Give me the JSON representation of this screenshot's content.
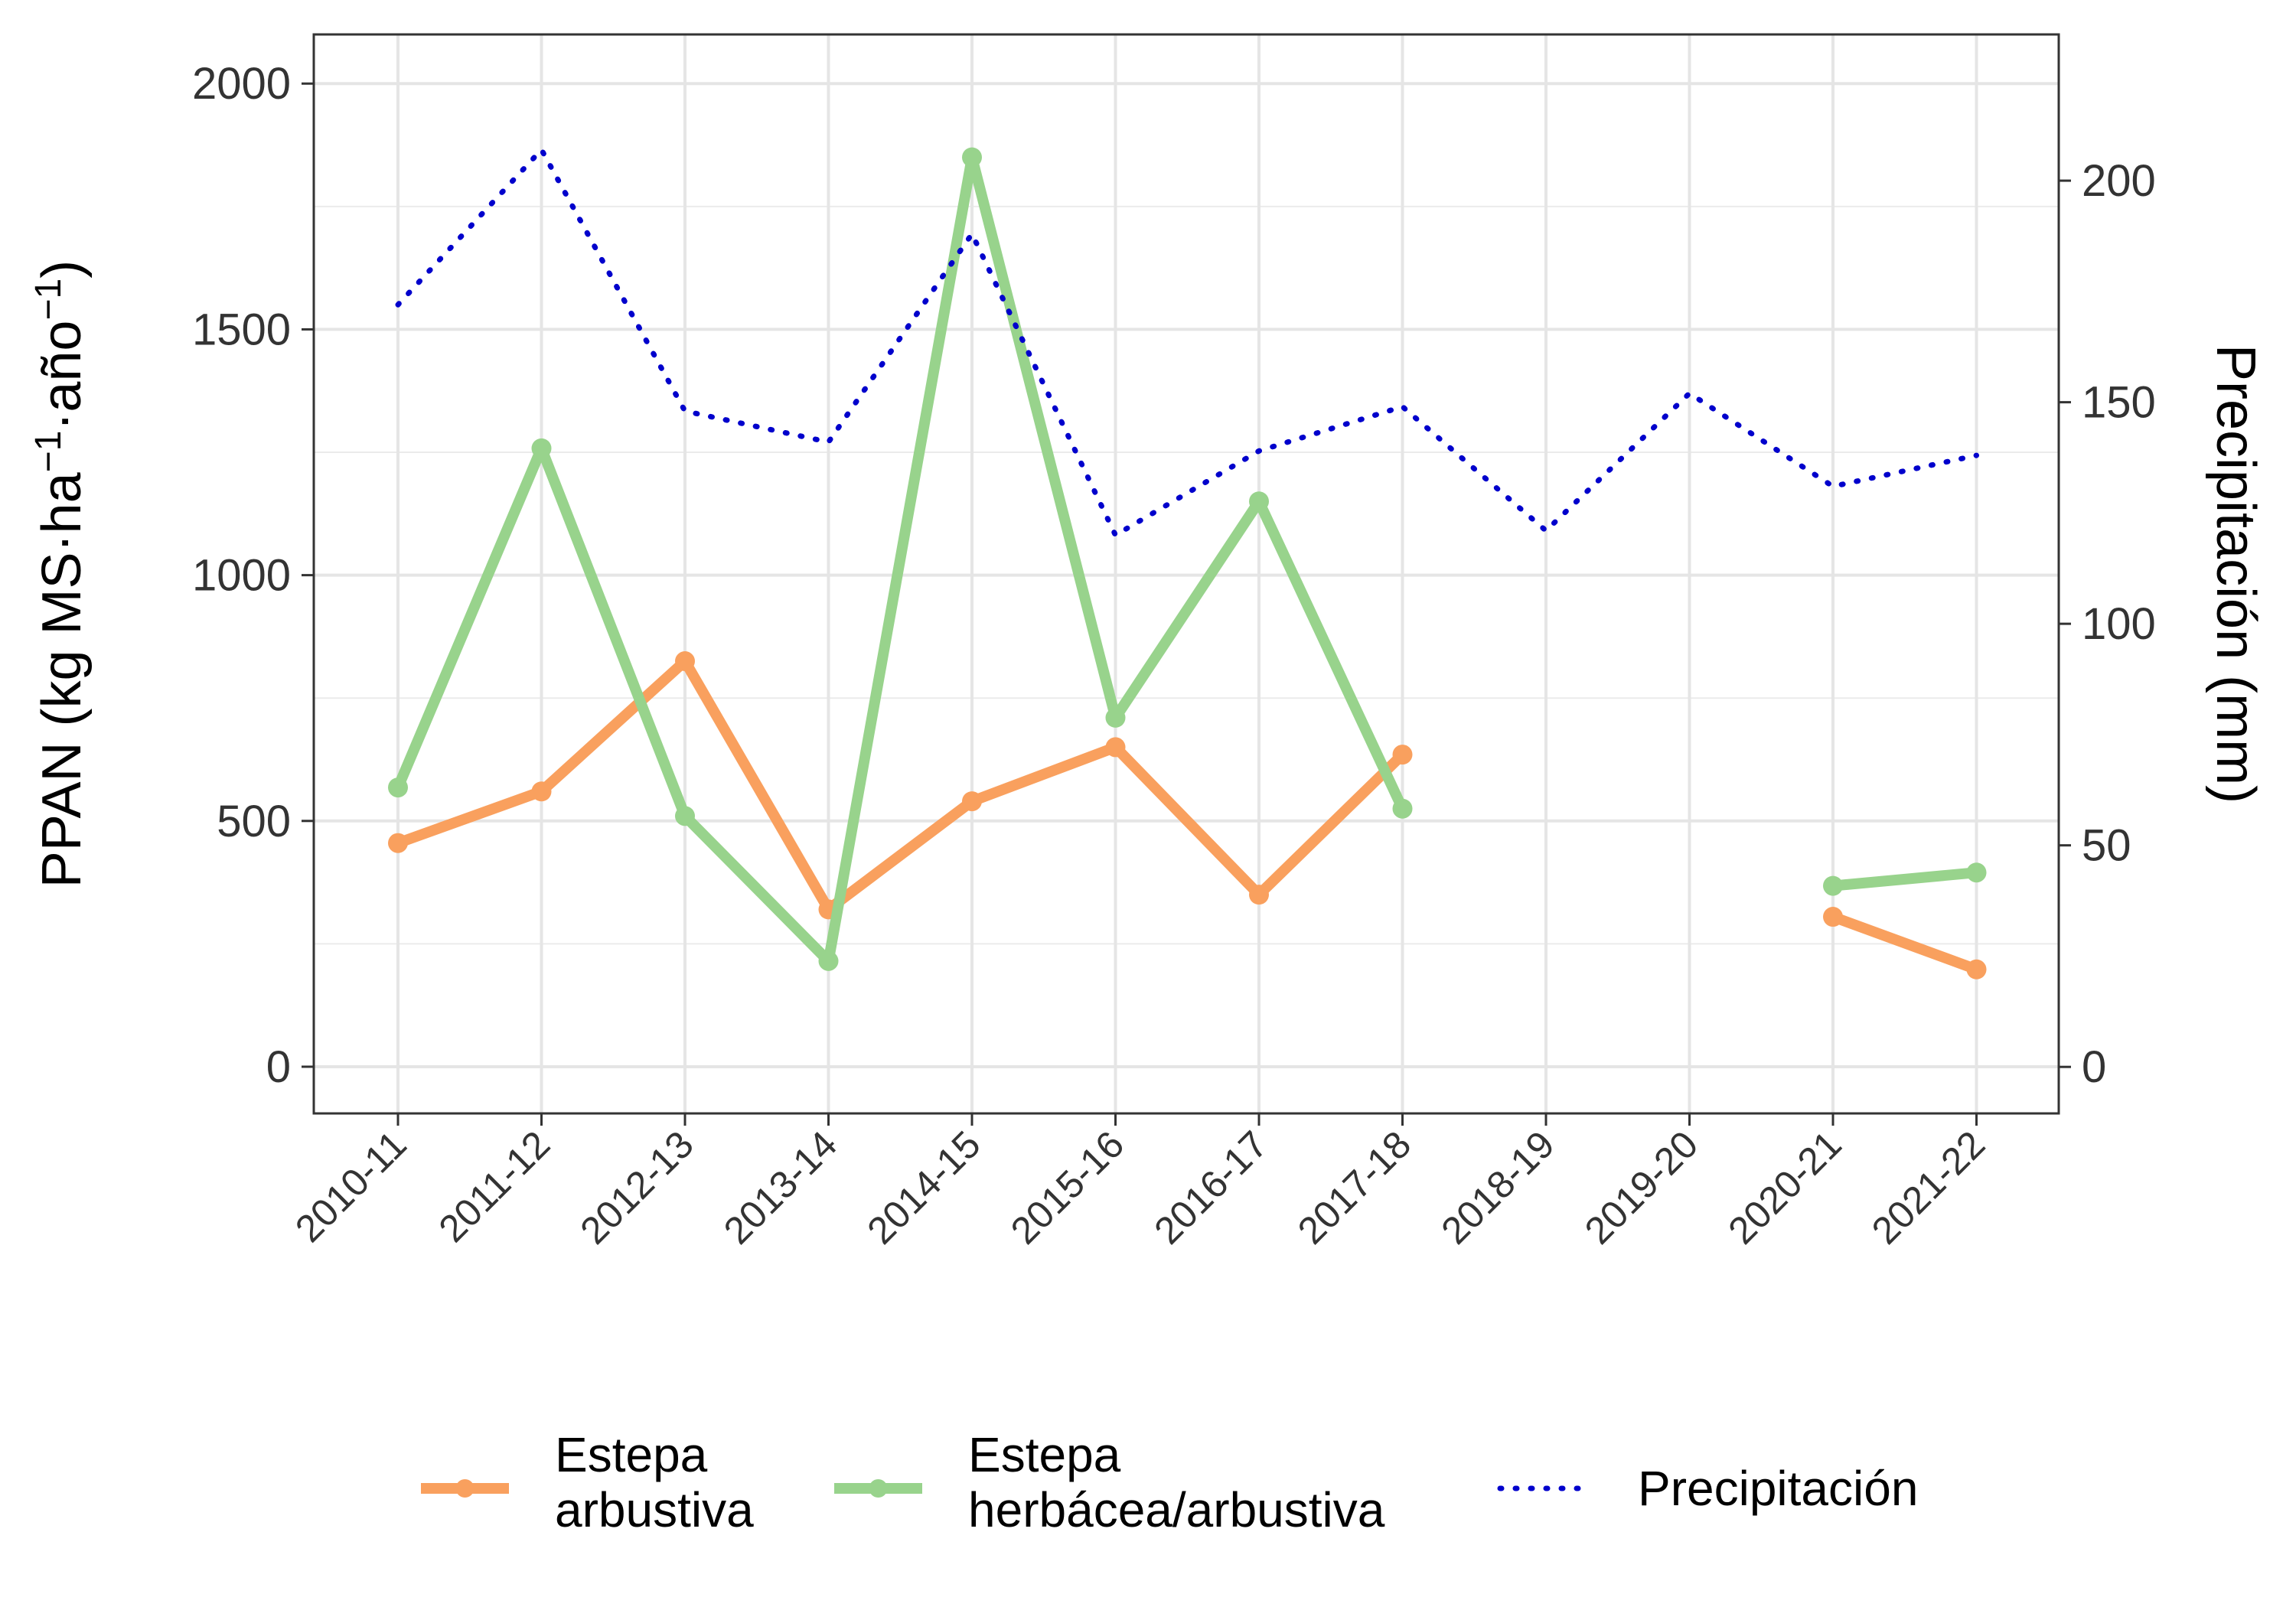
{
  "chart_data": {
    "type": "line",
    "categories": [
      "2010-11",
      "2011-12",
      "2012-13",
      "2013-14",
      "2014-15",
      "2015-16",
      "2016-17",
      "2017-18",
      "2018-19",
      "2019-20",
      "2020-21",
      "2021-22"
    ],
    "left_axis": {
      "label": "PPAN (kg MS·ha⁻¹·año⁻¹)",
      "range": [
        -95,
        2100
      ],
      "ticks": [
        0,
        500,
        1000,
        1500,
        2000
      ]
    },
    "right_axis": {
      "label": "Precipitación (mm)",
      "range": [
        -10.5,
        233
      ],
      "ticks": [
        0,
        50,
        100,
        150,
        200
      ]
    },
    "grid": true,
    "legend_position": "bottom",
    "series": [
      {
        "name": "Estepa arbustiva",
        "legend_lines": [
          "Estepa",
          "arbustiva"
        ],
        "axis": "left",
        "style": "solid-points",
        "color": "#F9A05E",
        "values": [
          455,
          560,
          825,
          320,
          540,
          650,
          350,
          635,
          null,
          null,
          305,
          198
        ]
      },
      {
        "name": "Estepa herbácea/arbustiva",
        "legend_lines": [
          "Estepa",
          "herbácea/arbustiva"
        ],
        "axis": "left",
        "style": "solid-points",
        "color": "#98D38C",
        "values": [
          568,
          1258,
          510,
          215,
          1850,
          710,
          1150,
          525,
          null,
          null,
          368,
          395
        ]
      },
      {
        "name": "Precipitación",
        "legend_lines": [
          "Precipitación"
        ],
        "axis": "right",
        "style": "dotted",
        "color": "#0000CC",
        "values": [
          172,
          207,
          148,
          141,
          188,
          120,
          139,
          149,
          121,
          152,
          131,
          138
        ]
      }
    ]
  }
}
